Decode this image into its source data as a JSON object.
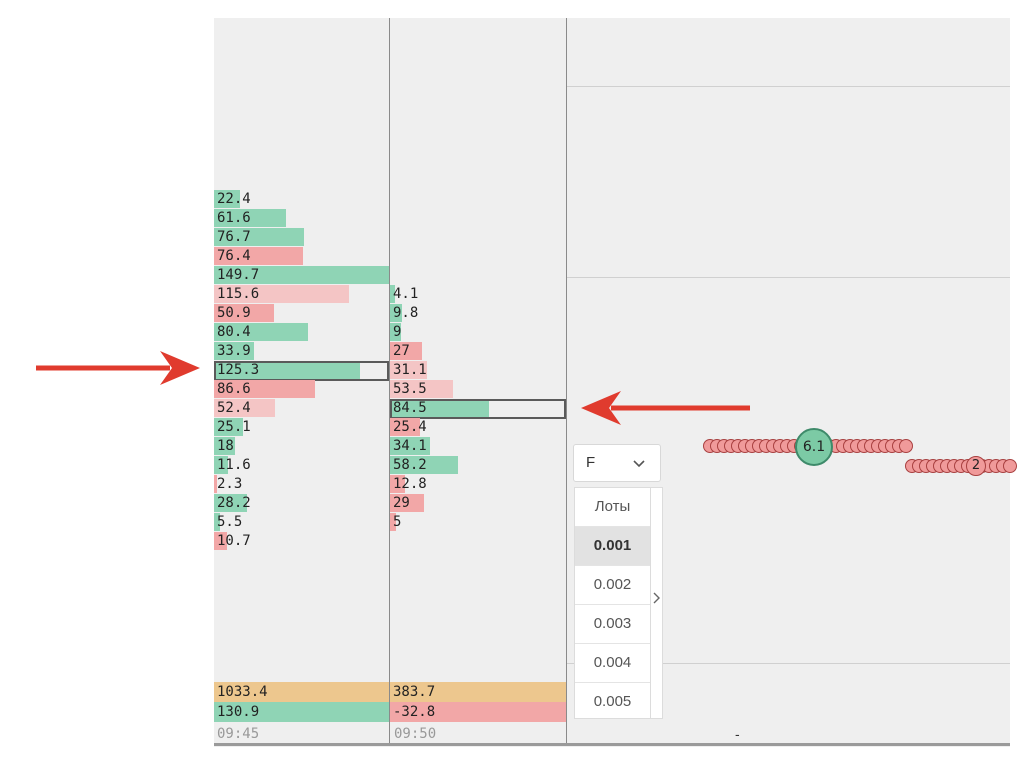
{
  "colors": {
    "buy": "#8fd4b5",
    "sell": "#f2a7a7",
    "sell_light": "#f4c5c5",
    "total": "#edc78e",
    "arrow": "#e03b2e",
    "panel": "#efefef"
  },
  "cluster_1": {
    "max_value": 149.7,
    "rows": [
      {
        "value": "22.4",
        "num": 22.4,
        "side": "buy"
      },
      {
        "value": "61.6",
        "num": 61.6,
        "side": "buy"
      },
      {
        "value": "76.7",
        "num": 76.7,
        "side": "buy"
      },
      {
        "value": "76.4",
        "num": 76.4,
        "side": "sell"
      },
      {
        "value": "149.7",
        "num": 149.7,
        "side": "buy"
      },
      {
        "value": "115.6",
        "num": 115.6,
        "side": "sell_light"
      },
      {
        "value": "50.9",
        "num": 50.9,
        "side": "sell"
      },
      {
        "value": "80.4",
        "num": 80.4,
        "side": "buy"
      },
      {
        "value": "33.9",
        "num": 33.9,
        "side": "buy"
      },
      {
        "value": "125.3",
        "num": 125.3,
        "side": "buy",
        "highlight": true
      },
      {
        "value": "86.6",
        "num": 86.6,
        "side": "sell"
      },
      {
        "value": "52.4",
        "num": 52.4,
        "side": "sell_light"
      },
      {
        "value": "25.1",
        "num": 25.1,
        "side": "buy"
      },
      {
        "value": "18",
        "num": 18,
        "side": "buy"
      },
      {
        "value": "11.6",
        "num": 11.6,
        "side": "buy"
      },
      {
        "value": "2.3",
        "num": 2.3,
        "side": "sell"
      },
      {
        "value": "28.2",
        "num": 28.2,
        "side": "buy"
      },
      {
        "value": "5.5",
        "num": 5.5,
        "side": "buy"
      },
      {
        "value": "10.7",
        "num": 10.7,
        "side": "sell"
      }
    ],
    "total_volume": "1033.4",
    "delta": "130.9",
    "time": "09:45"
  },
  "cluster_2": {
    "max_value": 149.7,
    "rows": [
      {
        "value": "4.1",
        "num": 4.1,
        "side": "buy"
      },
      {
        "value": "9.8",
        "num": 9.8,
        "side": "buy"
      },
      {
        "value": "9",
        "num": 9,
        "side": "buy"
      },
      {
        "value": "27",
        "num": 27,
        "side": "sell"
      },
      {
        "value": "31.1",
        "num": 31.1,
        "side": "sell_light"
      },
      {
        "value": "53.5",
        "num": 53.5,
        "side": "sell_light"
      },
      {
        "value": "84.5",
        "num": 84.5,
        "side": "buy",
        "highlight": true
      },
      {
        "value": "25.4",
        "num": 25.4,
        "side": "sell"
      },
      {
        "value": "34.1",
        "num": 34.1,
        "side": "buy"
      },
      {
        "value": "58.2",
        "num": 58.2,
        "side": "buy"
      },
      {
        "value": "12.8",
        "num": 12.8,
        "side": "sell"
      },
      {
        "value": "29",
        "num": 29,
        "side": "sell"
      },
      {
        "value": "5",
        "num": 5,
        "side": "sell"
      }
    ],
    "total_volume": "383.7",
    "delta": "-32.8",
    "time": "09:50"
  },
  "dropdown": {
    "label": "F",
    "chevron_icon": "chevron-down-icon"
  },
  "lots_panel": {
    "header": "Лоты",
    "options": [
      "0.001",
      "0.002",
      "0.003",
      "0.004",
      "0.005"
    ],
    "selected": "0.001",
    "expand_icon": "chevron-right-icon"
  },
  "trades": {
    "big_bubble_label": "6.1",
    "mid_bubble_label": "2"
  },
  "bottom_mark": "-"
}
